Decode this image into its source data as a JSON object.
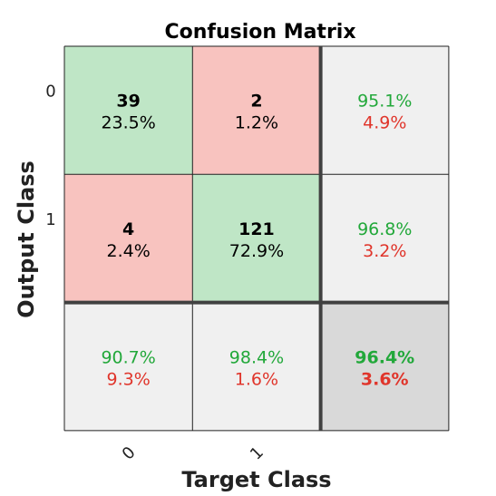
{
  "chart_data": {
    "type": "table",
    "title": "Confusion Matrix",
    "xlabel": "Target Class",
    "ylabel": "Output Class",
    "x_tick_labels": [
      "0",
      "1"
    ],
    "y_tick_labels": [
      "0",
      "1"
    ],
    "matrix": {
      "cells": [
        [
          {
            "count": "39",
            "percent": "23.5%",
            "kind": "correct"
          },
          {
            "count": "2",
            "percent": "1.2%",
            "kind": "incorrect"
          }
        ],
        [
          {
            "count": "4",
            "percent": "2.4%",
            "kind": "incorrect"
          },
          {
            "count": "121",
            "percent": "72.9%",
            "kind": "correct"
          }
        ]
      ],
      "row_summary": [
        {
          "correct": "95.1%",
          "incorrect": "4.9%"
        },
        {
          "correct": "96.8%",
          "incorrect": "3.2%"
        }
      ],
      "col_summary": [
        {
          "correct": "90.7%",
          "incorrect": "9.3%"
        },
        {
          "correct": "98.4%",
          "incorrect": "1.6%"
        }
      ],
      "overall": {
        "correct": "96.4%",
        "incorrect": "3.6%"
      }
    }
  },
  "colors": {
    "correct_fill": "#bfe6c6",
    "incorrect_fill": "#f8c3bf",
    "summary_fill": "#f0f0f0",
    "overall_fill": "#d9d9d9",
    "green_text": "#22a83a",
    "red_text": "#e0352b",
    "grid_line": "#222222",
    "thick_line": "#404040"
  }
}
